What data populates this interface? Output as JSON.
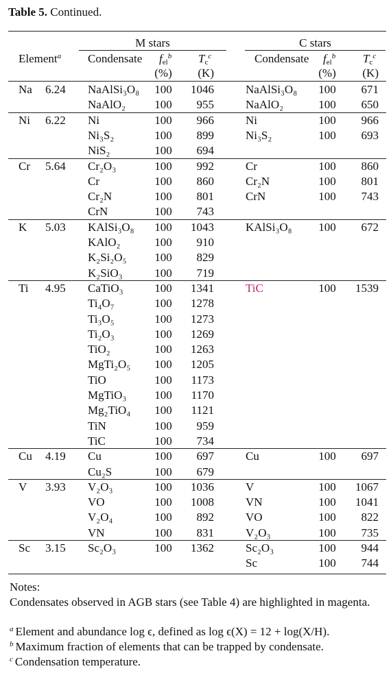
{
  "title": {
    "label": "Table 5.",
    "text": "Continued."
  },
  "header": {
    "m_stars": "M stars",
    "c_stars": "C stars",
    "element": "Element",
    "element_note": "a",
    "condensate": "Condensate",
    "fel": "f",
    "fel_sub": "el",
    "fel_note": "b",
    "fel_unit": "(%)",
    "tc": "T",
    "tc_sub": "c",
    "tc_note": "c",
    "tc_unit": "(K)"
  },
  "highlight_color": "#c8207e",
  "groups": [
    {
      "element": "Na",
      "abundance": "6.24",
      "m_rows": [
        {
          "condensate": "NaAlSi₃O₈",
          "fel": 100,
          "tc": 1046
        },
        {
          "condensate": "NaAlO₂",
          "fel": 100,
          "tc": 955
        }
      ],
      "c_rows": [
        {
          "condensate": "NaAlSi₃O₈",
          "fel": 100,
          "tc": 671
        },
        {
          "condensate": "NaAlO₂",
          "fel": 100,
          "tc": 650
        }
      ]
    },
    {
      "element": "Ni",
      "abundance": "6.22",
      "m_rows": [
        {
          "condensate": "Ni",
          "fel": 100,
          "tc": 966
        },
        {
          "condensate": "Ni₃S₂",
          "fel": 100,
          "tc": 899
        },
        {
          "condensate": "NiS₂",
          "fel": 100,
          "tc": 694
        }
      ],
      "c_rows": [
        {
          "condensate": "Ni",
          "fel": 100,
          "tc": 966
        },
        {
          "condensate": "Ni₃S₂",
          "fel": 100,
          "tc": 693
        }
      ]
    },
    {
      "element": "Cr",
      "abundance": "5.64",
      "m_rows": [
        {
          "condensate": "Cr₂O₃",
          "fel": 100,
          "tc": 992
        },
        {
          "condensate": "Cr",
          "fel": 100,
          "tc": 860
        },
        {
          "condensate": "Cr₂N",
          "fel": 100,
          "tc": 801
        },
        {
          "condensate": "CrN",
          "fel": 100,
          "tc": 743
        }
      ],
      "c_rows": [
        {
          "condensate": "Cr",
          "fel": 100,
          "tc": 860
        },
        {
          "condensate": "Cr₂N",
          "fel": 100,
          "tc": 801
        },
        {
          "condensate": "CrN",
          "fel": 100,
          "tc": 743
        }
      ]
    },
    {
      "element": "K",
      "abundance": "5.03",
      "m_rows": [
        {
          "condensate": "KAlSi₃O₈",
          "fel": 100,
          "tc": 1043
        },
        {
          "condensate": "KAlO₂",
          "fel": 100,
          "tc": 910
        },
        {
          "condensate": "K₂Si₂O₅",
          "fel": 100,
          "tc": 829
        },
        {
          "condensate": "K₂SiO₃",
          "fel": 100,
          "tc": 719
        }
      ],
      "c_rows": [
        {
          "condensate": "KAlSi₃O₈",
          "fel": 100,
          "tc": 672
        }
      ]
    },
    {
      "element": "Ti",
      "abundance": "4.95",
      "m_rows": [
        {
          "condensate": "CaTiO₃",
          "fel": 100,
          "tc": 1341
        },
        {
          "condensate": "Ti₄O₇",
          "fel": 100,
          "tc": 1278
        },
        {
          "condensate": "Ti₃O₅",
          "fel": 100,
          "tc": 1273
        },
        {
          "condensate": "Ti₂O₃",
          "fel": 100,
          "tc": 1269
        },
        {
          "condensate": "TiO₂",
          "fel": 100,
          "tc": 1263
        },
        {
          "condensate": "MgTi₂O₅",
          "fel": 100,
          "tc": 1205
        },
        {
          "condensate": "TiO",
          "fel": 100,
          "tc": 1173
        },
        {
          "condensate": "MgTiO₃",
          "fel": 100,
          "tc": 1170
        },
        {
          "condensate": "Mg₂TiO₄",
          "fel": 100,
          "tc": 1121
        },
        {
          "condensate": "TiN",
          "fel": 100,
          "tc": 959
        },
        {
          "condensate": "TiC",
          "fel": 100,
          "tc": 734
        }
      ],
      "c_rows": [
        {
          "condensate": "TiC",
          "fel": 100,
          "tc": 1539,
          "highlight": true
        }
      ]
    },
    {
      "element": "Cu",
      "abundance": "4.19",
      "m_rows": [
        {
          "condensate": "Cu",
          "fel": 100,
          "tc": 697
        },
        {
          "condensate": "Cu₂S",
          "fel": 100,
          "tc": 679
        }
      ],
      "c_rows": [
        {
          "condensate": "Cu",
          "fel": 100,
          "tc": 697
        }
      ]
    },
    {
      "element": "V",
      "abundance": "3.93",
      "m_rows": [
        {
          "condensate": "V₂O₃",
          "fel": 100,
          "tc": 1036
        },
        {
          "condensate": "VO",
          "fel": 100,
          "tc": 1008
        },
        {
          "condensate": "V₂O₄",
          "fel": 100,
          "tc": 892
        },
        {
          "condensate": "VN",
          "fel": 100,
          "tc": 831
        }
      ],
      "c_rows": [
        {
          "condensate": "V",
          "fel": 100,
          "tc": 1067
        },
        {
          "condensate": "VN",
          "fel": 100,
          "tc": 1041
        },
        {
          "condensate": "VO",
          "fel": 100,
          "tc": 822
        },
        {
          "condensate": "V₂O₃",
          "fel": 100,
          "tc": 735
        }
      ]
    },
    {
      "element": "Sc",
      "abundance": "3.15",
      "m_rows": [
        {
          "condensate": "Sc₂O₃",
          "fel": 100,
          "tc": 1362
        }
      ],
      "c_rows": [
        {
          "condensate": "Sc₂O₃",
          "fel": 100,
          "tc": 944
        },
        {
          "condensate": "Sc",
          "fel": 100,
          "tc": 744
        }
      ]
    }
  ],
  "notes": {
    "heading": "Notes:",
    "text": "Condensates observed in AGB stars (see Table 4) are highlighted in magenta.",
    "footnotes": [
      {
        "marker": "a",
        "text": "Element and abundance log ϵ, defined as log ϵ(X) = 12 + log(X/H)."
      },
      {
        "marker": "b",
        "text": "Maximum fraction of elements that can be trapped by condensate."
      },
      {
        "marker": "c",
        "text": "Condensation temperature."
      }
    ]
  }
}
